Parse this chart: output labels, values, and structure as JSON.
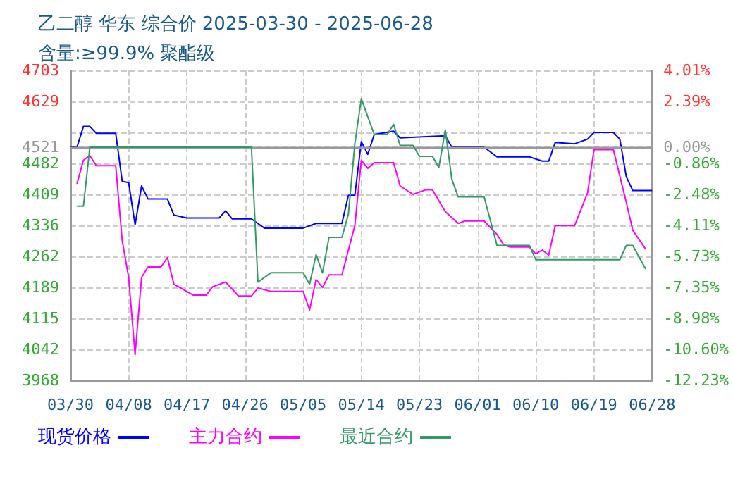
{
  "chart_data": {
    "type": "line",
    "title": "乙二醇 华东 综合价 2025-03-30 - 2025-06-28",
    "subtitle": "含量:≥99.9% 聚酯级",
    "xlim": [
      "2025-03-30",
      "2025-06-28"
    ],
    "xticks": [
      {
        "value": "2025-03-30",
        "label": "03/30"
      },
      {
        "value": "2025-04-08",
        "label": "04/08"
      },
      {
        "value": "2025-04-17",
        "label": "04/17"
      },
      {
        "value": "2025-04-26",
        "label": "04/26"
      },
      {
        "value": "2025-05-05",
        "label": "05/05"
      },
      {
        "value": "2025-05-14",
        "label": "05/14"
      },
      {
        "value": "2025-05-23",
        "label": "05/23"
      },
      {
        "value": "2025-06-01",
        "label": "06/01"
      },
      {
        "value": "2025-06-10",
        "label": "06/10"
      },
      {
        "value": "2025-06-19",
        "label": "06/19"
      },
      {
        "value": "2025-06-28",
        "label": "06/28"
      }
    ],
    "ylim": [
      3968,
      4703
    ],
    "yticks": [
      3968,
      4042,
      4115,
      4189,
      4262,
      4336,
      4409,
      4482,
      4521,
      {
        "value": 4556,
        "label": null
      },
      4629,
      4703
    ],
    "y2lim": [
      -12.23,
      4.01
    ],
    "y2ticks": [
      {
        "value": -12.23,
        "label": "-12.23%"
      },
      {
        "value": -10.6,
        "label": "-10.60%"
      },
      {
        "value": -8.98,
        "label": "-8.98%"
      },
      {
        "value": -7.35,
        "label": "-7.35%"
      },
      {
        "value": -5.73,
        "label": "-5.73%"
      },
      {
        "value": -4.11,
        "label": "-4.11%"
      },
      {
        "value": -2.48,
        "label": "-2.48%"
      },
      {
        "value": -0.86,
        "label": "-0.86%"
      },
      {
        "value": 0,
        "label": "0.00%"
      },
      {
        "value": 0.77,
        "label": null
      },
      {
        "value": 2.39,
        "label": "2.39%"
      },
      {
        "value": 4.01,
        "label": "4.01%"
      }
    ],
    "ref_lines": [
      {
        "axis": "y",
        "value": 4521,
        "color": "#999999"
      }
    ],
    "grid": true,
    "legend": "bottom",
    "marker": "none",
    "line_style": "solid",
    "series": [
      {
        "name": "现货价格",
        "color": "#0000ff",
        "x": [
          "2025-03-30",
          "2025-03-31",
          "2025-04-01",
          "2025-04-02",
          "2025-04-03",
          "2025-04-06",
          "2025-04-07",
          "2025-04-08",
          "2025-04-09",
          "2025-04-10",
          "2025-04-11",
          "2025-04-14",
          "2025-04-15",
          "2025-04-17",
          "2025-04-22",
          "2025-04-23",
          "2025-04-24",
          "2025-04-27",
          "2025-04-29",
          "2025-05-05",
          "2025-05-07",
          "2025-05-11",
          "2025-05-12",
          "2025-05-13",
          "2025-05-14",
          "2025-05-15",
          "2025-05-16",
          "2025-05-19",
          "2025-05-20",
          "2025-05-27",
          "2025-05-28",
          "2025-06-02",
          "2025-06-04",
          "2025-06-09",
          "2025-06-11",
          "2025-06-12",
          "2025-06-13",
          "2025-06-16",
          "2025-06-18",
          "2025-06-19",
          "2025-06-22",
          "2025-06-23",
          "2025-06-24",
          "2025-06-25",
          "2025-06-28"
        ],
        "values": [
          4521,
          4521,
          4570,
          4570,
          4554,
          4554,
          4440,
          4437,
          4337,
          4429,
          4398,
          4398,
          4360,
          4353,
          4353,
          4370,
          4351,
          4351,
          4329,
          4329,
          4340,
          4340,
          4407,
          4407,
          4534,
          4504,
          4551,
          4559,
          4543,
          4548,
          4521,
          4521,
          4498,
          4498,
          4488,
          4488,
          4532,
          4529,
          4540,
          4556,
          4556,
          4540,
          4451,
          4418,
          4418
        ]
      },
      {
        "name": "主力合约",
        "color": "#ff00ff",
        "x": [
          "2025-03-31",
          "2025-04-01",
          "2025-04-02",
          "2025-04-03",
          "2025-04-06",
          "2025-04-07",
          "2025-04-08",
          "2025-04-09",
          "2025-04-10",
          "2025-04-11",
          "2025-04-13",
          "2025-04-14",
          "2025-04-15",
          "2025-04-18",
          "2025-04-20",
          "2025-04-21",
          "2025-04-23",
          "2025-04-25",
          "2025-04-27",
          "2025-04-28",
          "2025-04-30",
          "2025-05-05",
          "2025-05-06",
          "2025-05-07",
          "2025-05-08",
          "2025-05-09",
          "2025-05-11",
          "2025-05-13",
          "2025-05-14",
          "2025-05-15",
          "2025-05-16",
          "2025-05-19",
          "2025-05-20",
          "2025-05-22",
          "2025-05-24",
          "2025-05-25",
          "2025-05-27",
          "2025-05-29",
          "2025-05-30",
          "2025-06-02",
          "2025-06-04",
          "2025-06-05",
          "2025-06-06",
          "2025-06-09",
          "2025-06-10",
          "2025-06-11",
          "2025-06-12",
          "2025-06-13",
          "2025-06-16",
          "2025-06-18",
          "2025-06-19",
          "2025-06-22",
          "2025-06-24",
          "2025-06-25",
          "2025-06-27"
        ],
        "values": [
          4434,
          4490,
          4501,
          4477,
          4477,
          4300,
          4212,
          4029,
          4212,
          4237,
          4237,
          4259,
          4196,
          4170,
          4170,
          4190,
          4201,
          4168,
          4168,
          4187,
          4179,
          4179,
          4135,
          4207,
          4188,
          4218,
          4218,
          4335,
          4490,
          4471,
          4484,
          4484,
          4429,
          4409,
          4420,
          4420,
          4368,
          4340,
          4346,
          4346,
          4314,
          4290,
          4284,
          4284,
          4268,
          4277,
          4265,
          4335,
          4335,
          4412,
          4515,
          4515,
          4390,
          4324,
          4279
        ]
      },
      {
        "name": "最近合约",
        "color": "#339966",
        "x": [
          "2025-03-31",
          "2025-04-01",
          "2025-04-02",
          "2025-04-27",
          "2025-04-28",
          "2025-04-30",
          "2025-05-05",
          "2025-05-06",
          "2025-05-07",
          "2025-05-08",
          "2025-05-09",
          "2025-05-11",
          "2025-05-12",
          "2025-05-13",
          "2025-05-14",
          "2025-05-16",
          "2025-05-18",
          "2025-05-19",
          "2025-05-20",
          "2025-05-22",
          "2025-05-23",
          "2025-05-25",
          "2025-05-26",
          "2025-05-27",
          "2025-05-28",
          "2025-05-29",
          "2025-06-02",
          "2025-06-04",
          "2025-06-09",
          "2025-06-10",
          "2025-06-23",
          "2025-06-24",
          "2025-06-25",
          "2025-06-27"
        ],
        "values": [
          4381,
          4381,
          4521,
          4521,
          4201,
          4223,
          4223,
          4196,
          4266,
          4223,
          4307,
          4307,
          4362,
          4529,
          4636,
          4551,
          4551,
          4575,
          4525,
          4525,
          4499,
          4499,
          4473,
          4562,
          4445,
          4403,
          4403,
          4288,
          4288,
          4254,
          4254,
          4288,
          4288,
          4232
        ]
      }
    ]
  }
}
